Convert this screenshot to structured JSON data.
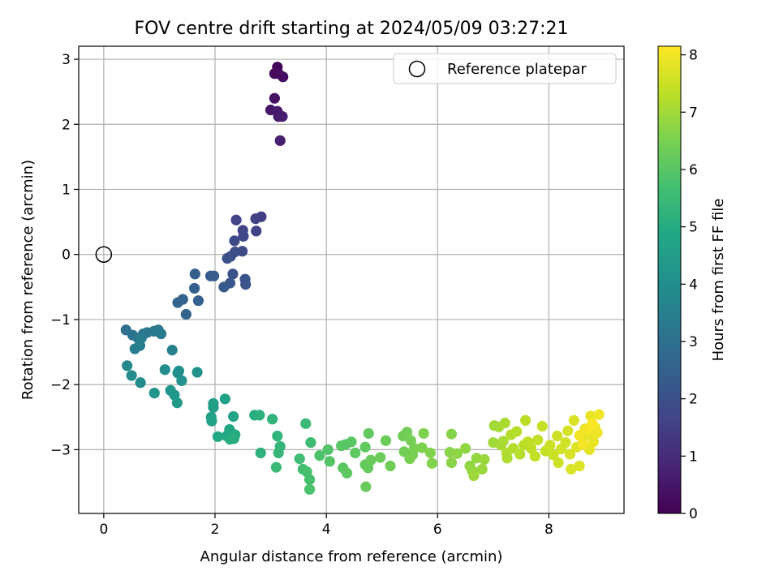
{
  "chart_data": {
    "type": "scatter",
    "title": "FOV centre drift starting at 2024/05/09 03:27:21",
    "xlabel": "Angular distance from reference (arcmin)",
    "ylabel": "Rotation from reference (arcmin)",
    "xlim": [
      -0.45,
      9.35
    ],
    "ylim": [
      -3.98,
      3.2
    ],
    "x_ticks": [
      0,
      2,
      4,
      6,
      8
    ],
    "y_ticks": [
      -3,
      -2,
      -1,
      0,
      1,
      2,
      3
    ],
    "grid": true,
    "legend": {
      "position": "top-right",
      "entries": [
        "Reference platepar"
      ]
    },
    "reference_point": {
      "x": 0,
      "y": 0
    },
    "colorbar": {
      "label": "Hours from first FF file",
      "range": [
        0,
        8.15
      ],
      "ticks": [
        0,
        1,
        2,
        3,
        4,
        5,
        6,
        7,
        8
      ],
      "colormap": "viridis"
    },
    "series": [
      {
        "points": [
          [
            3.12,
            2.88,
            0.1
          ],
          [
            3.07,
            2.78,
            0.2
          ],
          [
            3.14,
            2.78,
            0.25
          ],
          [
            3.22,
            2.73,
            0.3
          ],
          [
            3.07,
            2.4,
            0.4
          ],
          [
            3.0,
            2.22,
            0.5
          ],
          [
            3.12,
            2.2,
            0.55
          ],
          [
            3.14,
            2.12,
            0.6
          ],
          [
            3.21,
            2.12,
            0.65
          ],
          [
            3.17,
            1.75,
            0.7
          ],
          [
            2.83,
            0.58,
            1.5
          ],
          [
            2.73,
            0.55,
            1.55
          ],
          [
            2.74,
            0.36,
            1.6
          ],
          [
            2.38,
            0.53,
            1.65
          ],
          [
            2.5,
            0.37,
            1.7
          ],
          [
            2.51,
            0.28,
            1.75
          ],
          [
            2.35,
            0.21,
            1.8
          ],
          [
            2.49,
            0.05,
            1.85
          ],
          [
            2.36,
            0.04,
            1.9
          ],
          [
            2.28,
            -0.03,
            1.95
          ],
          [
            2.22,
            -0.06,
            2.0
          ],
          [
            2.32,
            -0.3,
            2.05
          ],
          [
            2.54,
            -0.38,
            2.1
          ],
          [
            2.55,
            -0.46,
            2.15
          ],
          [
            2.27,
            -0.44,
            2.2
          ],
          [
            2.16,
            -0.5,
            2.25
          ],
          [
            1.92,
            -0.33,
            2.3
          ],
          [
            1.98,
            -0.33,
            2.35
          ],
          [
            1.64,
            -0.3,
            2.4
          ],
          [
            1.63,
            -0.52,
            2.45
          ],
          [
            1.7,
            -0.71,
            2.5
          ],
          [
            1.42,
            -0.69,
            2.55
          ],
          [
            1.33,
            -0.74,
            2.6
          ],
          [
            1.48,
            -0.92,
            2.65
          ],
          [
            0.4,
            -1.16,
            3.0
          ],
          [
            0.52,
            -1.24,
            3.05
          ],
          [
            0.62,
            -1.29,
            3.1
          ],
          [
            0.71,
            -1.22,
            3.15
          ],
          [
            0.78,
            -1.2,
            3.2
          ],
          [
            0.9,
            -1.18,
            3.25
          ],
          [
            0.98,
            -1.16,
            3.3
          ],
          [
            1.03,
            -1.22,
            3.35
          ],
          [
            0.68,
            -1.28,
            3.4
          ],
          [
            0.56,
            -1.45,
            3.45
          ],
          [
            0.65,
            -1.4,
            3.5
          ],
          [
            1.23,
            -1.47,
            3.55
          ],
          [
            0.42,
            -1.71,
            3.8
          ],
          [
            0.5,
            -1.86,
            3.85
          ],
          [
            0.66,
            -1.97,
            3.9
          ],
          [
            1.1,
            -1.77,
            3.95
          ],
          [
            1.33,
            -1.82,
            4.0
          ],
          [
            1.35,
            -1.79,
            4.05
          ],
          [
            1.4,
            -1.94,
            4.1
          ],
          [
            1.68,
            -1.81,
            4.15
          ],
          [
            0.91,
            -2.13,
            4.2
          ],
          [
            1.2,
            -2.09,
            4.25
          ],
          [
            1.27,
            -2.16,
            4.3
          ],
          [
            1.32,
            -2.28,
            4.35
          ],
          [
            1.97,
            -2.29,
            4.5
          ],
          [
            1.97,
            -2.35,
            4.55
          ],
          [
            2.18,
            -2.22,
            4.6
          ],
          [
            1.93,
            -2.5,
            4.65
          ],
          [
            1.94,
            -2.56,
            4.7
          ],
          [
            2.33,
            -2.49,
            4.75
          ],
          [
            2.26,
            -2.69,
            4.8
          ],
          [
            2.21,
            -2.79,
            4.85
          ],
          [
            2.05,
            -2.8,
            4.9
          ],
          [
            2.36,
            -2.77,
            4.95
          ],
          [
            2.27,
            -2.84,
            5.0
          ],
          [
            2.34,
            -2.83,
            5.05
          ],
          [
            2.71,
            -2.47,
            5.1
          ],
          [
            2.8,
            -2.47,
            5.15
          ],
          [
            2.82,
            -3.05,
            5.2
          ],
          [
            3.03,
            -2.53,
            5.25
          ],
          [
            3.12,
            -2.79,
            5.3
          ],
          [
            3.17,
            -2.95,
            5.35
          ],
          [
            3.14,
            -3.05,
            5.4
          ],
          [
            3.1,
            -3.27,
            5.45
          ],
          [
            3.63,
            -2.6,
            5.5
          ],
          [
            3.72,
            -2.89,
            5.55
          ],
          [
            3.52,
            -3.14,
            5.6
          ],
          [
            3.58,
            -3.3,
            5.65
          ],
          [
            3.65,
            -3.34,
            5.7
          ],
          [
            3.7,
            -3.46,
            5.75
          ],
          [
            3.7,
            -3.61,
            5.8
          ],
          [
            3.88,
            -3.09,
            5.85
          ],
          [
            4.03,
            -3.0,
            5.9
          ],
          [
            4.06,
            -3.18,
            5.95
          ],
          [
            4.27,
            -2.94,
            6.0
          ],
          [
            4.35,
            -2.92,
            6.0
          ],
          [
            4.45,
            -2.88,
            6.05
          ],
          [
            4.3,
            -3.28,
            6.05
          ],
          [
            4.37,
            -3.36,
            6.1
          ],
          [
            4.52,
            -3.05,
            6.1
          ],
          [
            4.7,
            -2.96,
            6.15
          ],
          [
            4.76,
            -2.75,
            6.15
          ],
          [
            4.7,
            -3.23,
            6.2
          ],
          [
            4.75,
            -3.28,
            6.2
          ],
          [
            4.8,
            -3.16,
            6.25
          ],
          [
            4.71,
            -3.57,
            6.25
          ],
          [
            4.97,
            -3.12,
            6.3
          ],
          [
            5.07,
            -2.86,
            6.3
          ],
          [
            5.15,
            -3.25,
            6.35
          ],
          [
            5.38,
            -2.79,
            6.35
          ],
          [
            5.45,
            -2.73,
            6.4
          ],
          [
            5.4,
            -3.03,
            6.4
          ],
          [
            5.52,
            -2.86,
            6.45
          ],
          [
            5.55,
            -3.08,
            6.45
          ],
          [
            5.5,
            -3.14,
            6.5
          ],
          [
            5.58,
            -2.98,
            6.5
          ],
          [
            5.72,
            -2.97,
            6.55
          ],
          [
            5.75,
            -2.75,
            6.55
          ],
          [
            5.87,
            -3.05,
            6.6
          ],
          [
            5.9,
            -3.21,
            6.6
          ],
          [
            6.25,
            -2.76,
            6.65
          ],
          [
            6.22,
            -3.04,
            6.7
          ],
          [
            6.25,
            -3.2,
            6.7
          ],
          [
            6.35,
            -3.06,
            6.75
          ],
          [
            6.5,
            -2.98,
            6.8
          ],
          [
            6.58,
            -3.25,
            6.8
          ],
          [
            6.62,
            -3.32,
            6.85
          ],
          [
            6.7,
            -3.13,
            6.85
          ],
          [
            6.8,
            -3.3,
            6.9
          ],
          [
            6.84,
            -3.15,
            6.9
          ],
          [
            6.65,
            -3.4,
            6.95
          ],
          [
            7.0,
            -2.89,
            7.0
          ],
          [
            7.02,
            -2.63,
            7.0
          ],
          [
            7.1,
            -2.65,
            7.05
          ],
          [
            7.14,
            -2.93,
            7.05
          ],
          [
            7.18,
            -2.87,
            7.1
          ],
          [
            7.21,
            -2.59,
            7.1
          ],
          [
            7.24,
            -3.05,
            7.15
          ],
          [
            7.25,
            -3.13,
            7.15
          ],
          [
            7.32,
            -2.77,
            7.2
          ],
          [
            7.36,
            -2.98,
            7.2
          ],
          [
            7.42,
            -2.72,
            7.25
          ],
          [
            7.48,
            -3.07,
            7.25
          ],
          [
            7.55,
            -2.93,
            7.3
          ],
          [
            7.58,
            -2.55,
            7.3
          ],
          [
            7.62,
            -2.88,
            7.35
          ],
          [
            7.68,
            -2.98,
            7.35
          ],
          [
            7.75,
            -3.1,
            7.4
          ],
          [
            7.8,
            -2.85,
            7.4
          ],
          [
            7.88,
            -2.64,
            7.45
          ],
          [
            7.94,
            -3.02,
            7.45
          ],
          [
            8.02,
            -2.93,
            7.5
          ],
          [
            8.08,
            -3.08,
            7.5
          ],
          [
            8.15,
            -2.79,
            7.55
          ],
          [
            8.17,
            -3.2,
            7.55
          ],
          [
            8.22,
            -2.99,
            7.6
          ],
          [
            8.3,
            -2.89,
            7.6
          ],
          [
            8.34,
            -2.71,
            7.65
          ],
          [
            8.38,
            -3.07,
            7.65
          ],
          [
            8.4,
            -3.3,
            7.7
          ],
          [
            8.45,
            -2.55,
            7.7
          ],
          [
            8.5,
            -2.96,
            7.75
          ],
          [
            8.55,
            -3.25,
            7.75
          ],
          [
            8.6,
            -2.82,
            7.8
          ],
          [
            8.65,
            -2.68,
            7.8
          ],
          [
            8.7,
            -2.76,
            7.85
          ],
          [
            8.73,
            -3.0,
            7.85
          ],
          [
            8.75,
            -2.48,
            7.9
          ],
          [
            8.8,
            -2.88,
            7.9
          ],
          [
            8.83,
            -2.66,
            7.95
          ],
          [
            8.87,
            -2.74,
            7.95
          ],
          [
            8.9,
            -2.46,
            8.0
          ],
          [
            8.55,
            -2.78,
            8.0
          ],
          [
            8.62,
            -2.92,
            8.05
          ],
          [
            8.68,
            -2.7,
            8.05
          ],
          [
            8.78,
            -2.6,
            8.1
          ]
        ]
      }
    ]
  }
}
